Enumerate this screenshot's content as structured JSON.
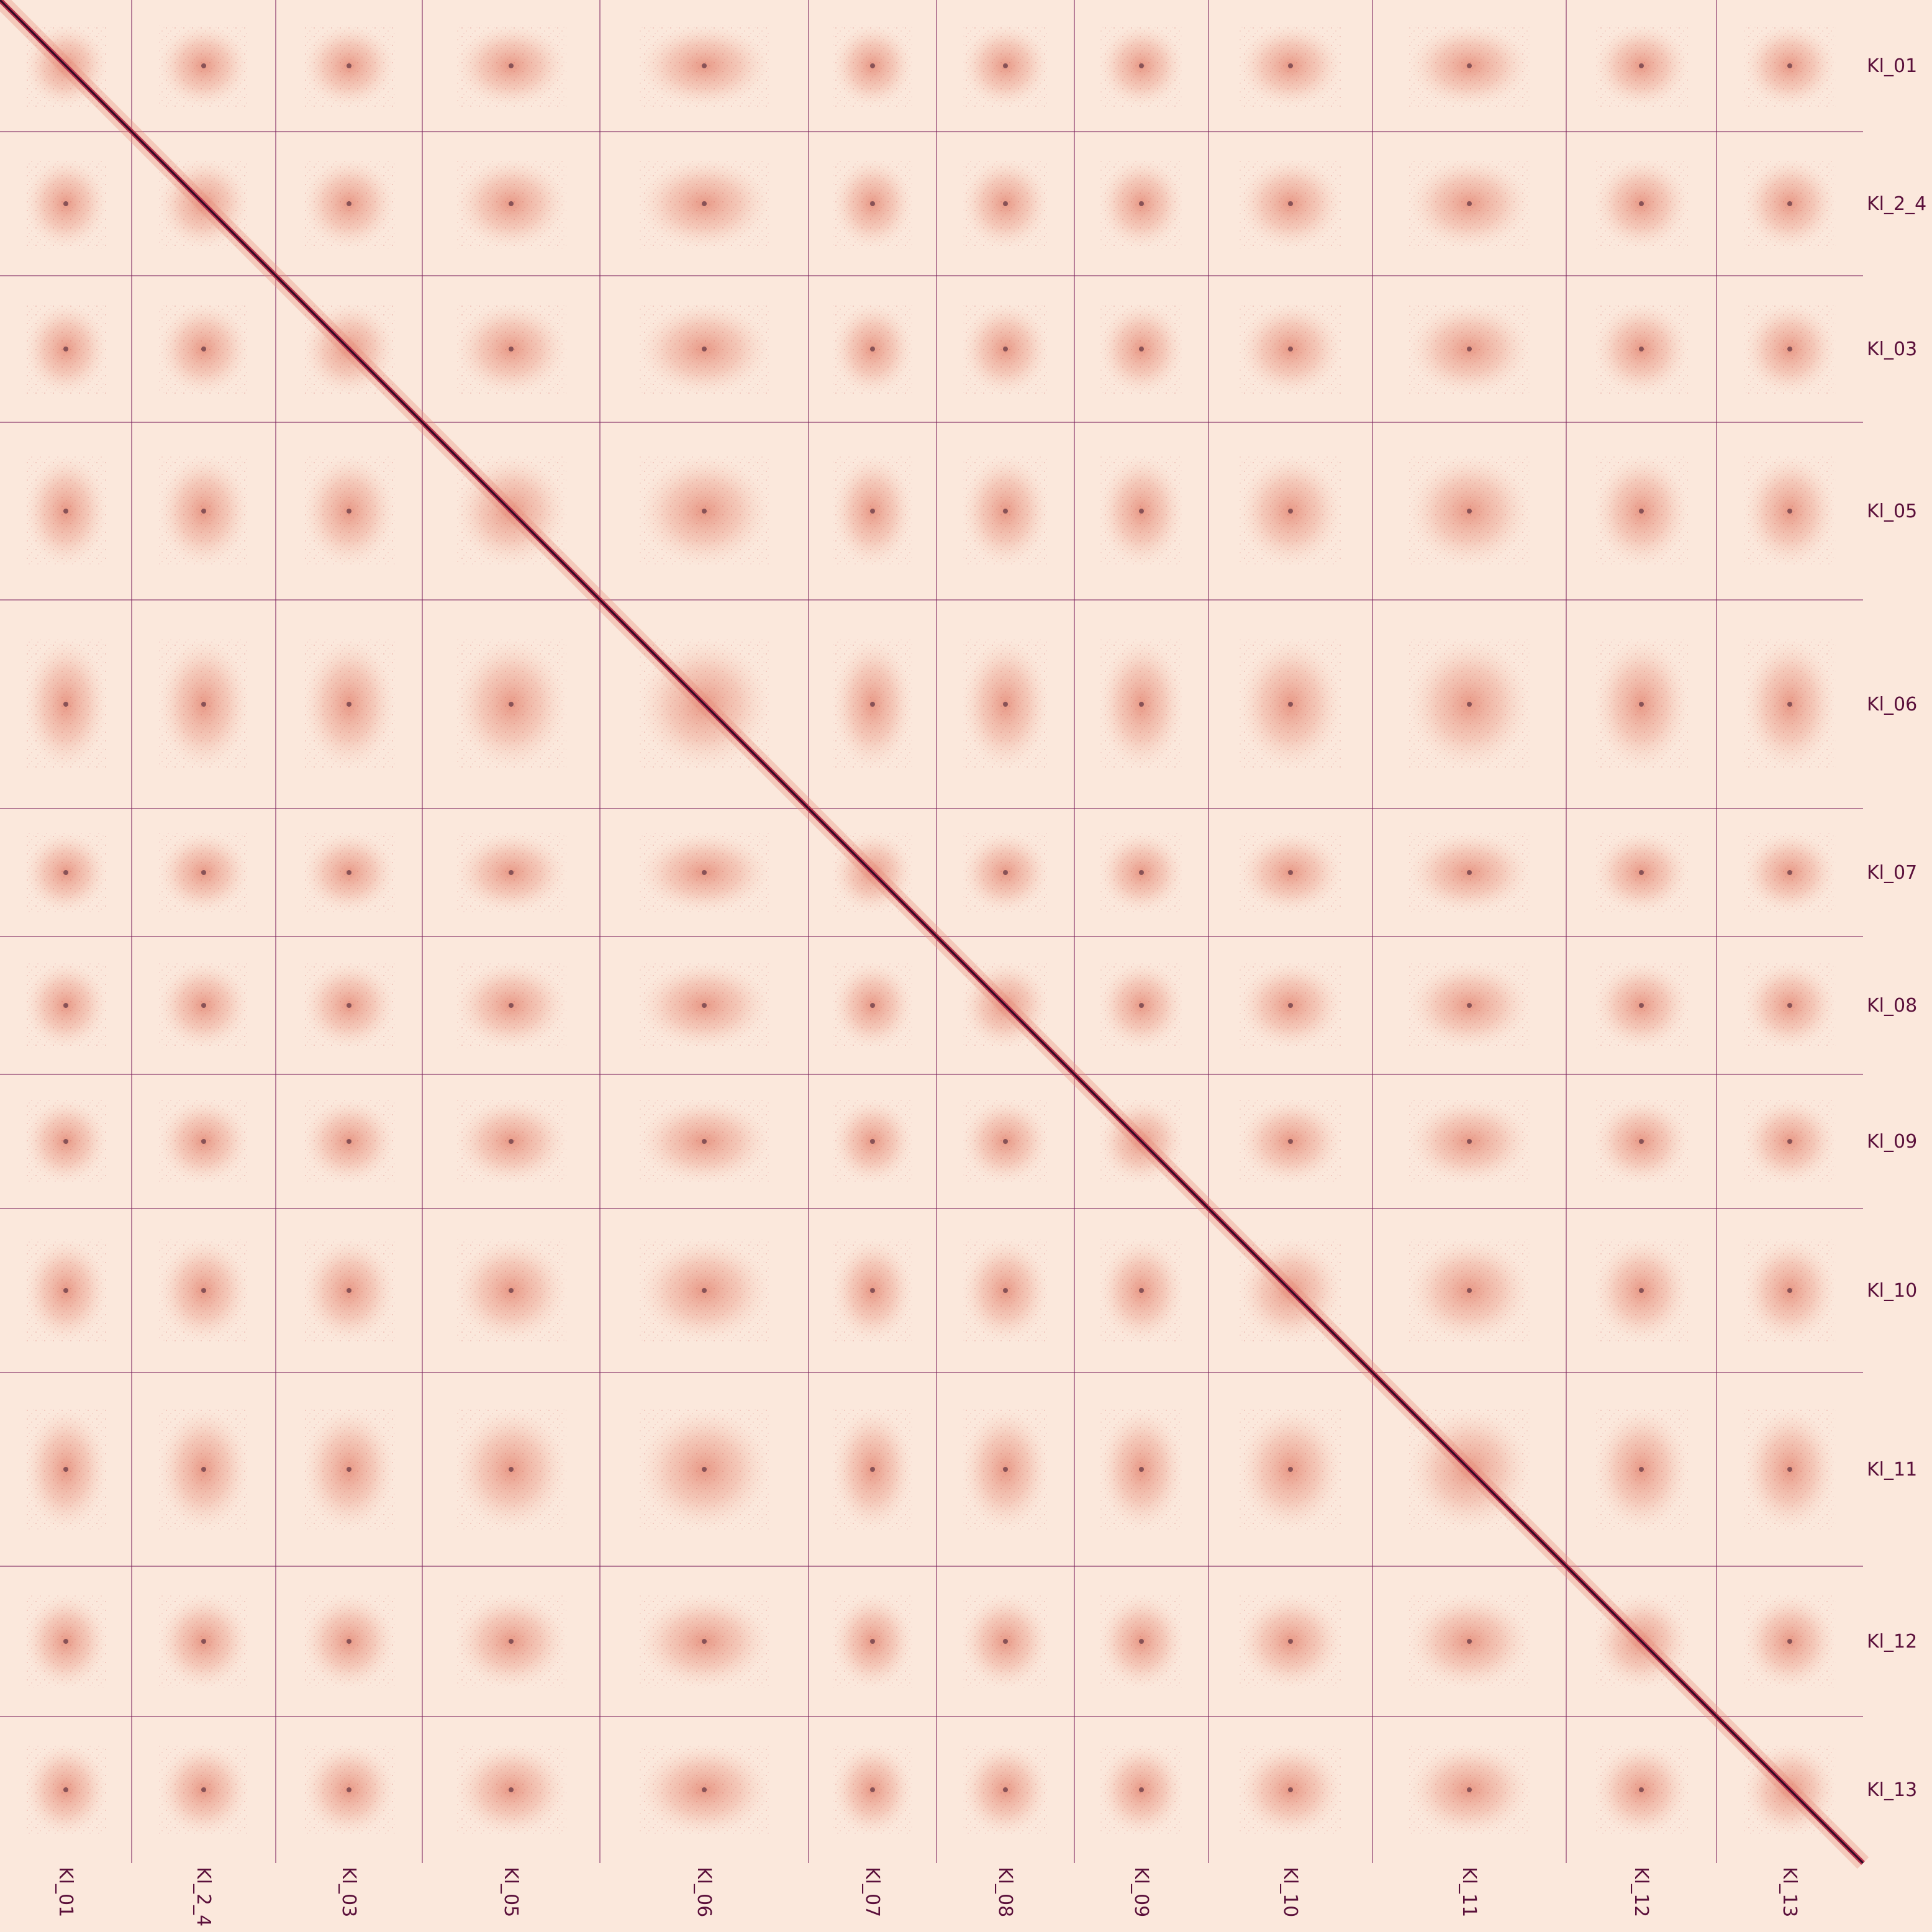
{
  "chart_data": {
    "type": "heatmap",
    "title": "",
    "xlabel": "",
    "ylabel": "",
    "matrix": "Hi-C contact map (symmetric, log-scaled contact intensity)",
    "grid": true,
    "grid_color": "#7a1f5c",
    "colors": {
      "background": "#fbe8dc",
      "low": "#fde7d8",
      "mid": "#e8907a",
      "high": "#b8334f",
      "max": "#2a0a23",
      "label": "#5a0f3a"
    },
    "scaffolds": [
      {
        "name": "Kl_01",
        "length": 212
      },
      {
        "name": "Kl_2_4",
        "length": 232
      },
      {
        "name": "Kl_03",
        "length": 236
      },
      {
        "name": "Kl_05",
        "length": 286
      },
      {
        "name": "Kl_06",
        "length": 336
      },
      {
        "name": "Kl_07",
        "length": 206
      },
      {
        "name": "Kl_08",
        "length": 222
      },
      {
        "name": "Kl_09",
        "length": 216
      },
      {
        "name": "Kl_10",
        "length": 264
      },
      {
        "name": "Kl_11",
        "length": 312
      },
      {
        "name": "Kl_12",
        "length": 242
      },
      {
        "name": "Kl_13",
        "length": 236
      }
    ]
  }
}
